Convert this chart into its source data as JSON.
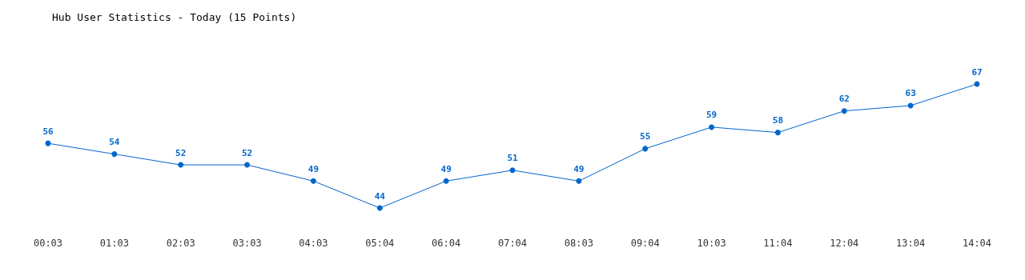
{
  "chart_data": {
    "type": "line",
    "title": "Hub User Statistics - Today (15 Points)",
    "categories": [
      "00:03",
      "01:03",
      "02:03",
      "03:03",
      "04:03",
      "05:04",
      "06:04",
      "07:04",
      "08:03",
      "09:04",
      "10:03",
      "11:04",
      "12:04",
      "13:04",
      "14:04"
    ],
    "series": [
      {
        "color": "#0066cc",
        "values": [
          56,
          54,
          52,
          52,
          49,
          44,
          49,
          51,
          49,
          55,
          59,
          58,
          62,
          63,
          67
        ]
      }
    ],
    "data_labels": true,
    "marker": "circle",
    "line_style": "solid",
    "grid": false,
    "tick_labels": "x"
  }
}
